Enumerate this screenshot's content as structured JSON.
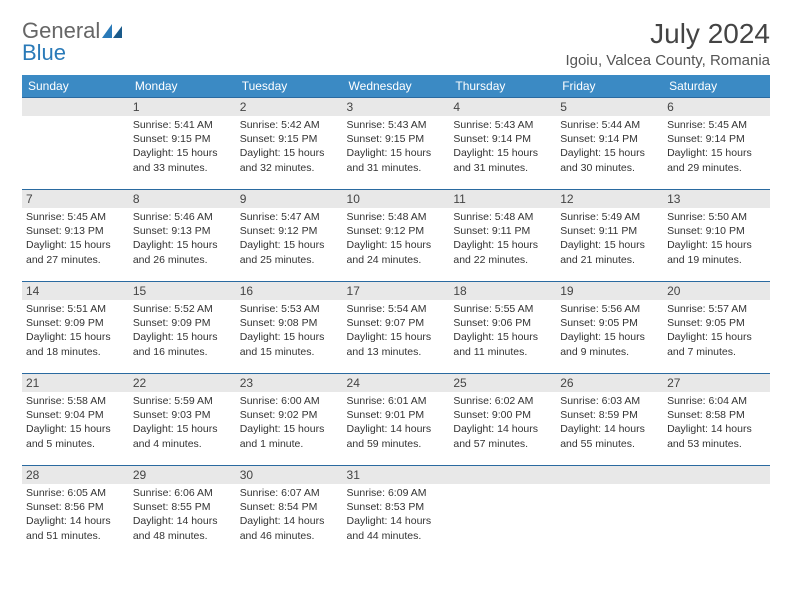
{
  "logo": {
    "text1": "General",
    "text2": "Blue"
  },
  "title": "July 2024",
  "location": "Igoiu, Valcea County, Romania",
  "colors": {
    "header_bg": "#3b8ac4",
    "header_text": "#ffffff",
    "daynum_bg": "#e8e8e8",
    "border": "#2a6aa0",
    "logo_gray": "#666666",
    "logo_blue": "#2a7ab8"
  },
  "weekdays": [
    "Sunday",
    "Monday",
    "Tuesday",
    "Wednesday",
    "Thursday",
    "Friday",
    "Saturday"
  ],
  "grid": {
    "start_offset": 1,
    "days": [
      {
        "n": 1,
        "sr": "5:41 AM",
        "ss": "9:15 PM",
        "dl": "15 hours and 33 minutes."
      },
      {
        "n": 2,
        "sr": "5:42 AM",
        "ss": "9:15 PM",
        "dl": "15 hours and 32 minutes."
      },
      {
        "n": 3,
        "sr": "5:43 AM",
        "ss": "9:15 PM",
        "dl": "15 hours and 31 minutes."
      },
      {
        "n": 4,
        "sr": "5:43 AM",
        "ss": "9:14 PM",
        "dl": "15 hours and 31 minutes."
      },
      {
        "n": 5,
        "sr": "5:44 AM",
        "ss": "9:14 PM",
        "dl": "15 hours and 30 minutes."
      },
      {
        "n": 6,
        "sr": "5:45 AM",
        "ss": "9:14 PM",
        "dl": "15 hours and 29 minutes."
      },
      {
        "n": 7,
        "sr": "5:45 AM",
        "ss": "9:13 PM",
        "dl": "15 hours and 27 minutes."
      },
      {
        "n": 8,
        "sr": "5:46 AM",
        "ss": "9:13 PM",
        "dl": "15 hours and 26 minutes."
      },
      {
        "n": 9,
        "sr": "5:47 AM",
        "ss": "9:12 PM",
        "dl": "15 hours and 25 minutes."
      },
      {
        "n": 10,
        "sr": "5:48 AM",
        "ss": "9:12 PM",
        "dl": "15 hours and 24 minutes."
      },
      {
        "n": 11,
        "sr": "5:48 AM",
        "ss": "9:11 PM",
        "dl": "15 hours and 22 minutes."
      },
      {
        "n": 12,
        "sr": "5:49 AM",
        "ss": "9:11 PM",
        "dl": "15 hours and 21 minutes."
      },
      {
        "n": 13,
        "sr": "5:50 AM",
        "ss": "9:10 PM",
        "dl": "15 hours and 19 minutes."
      },
      {
        "n": 14,
        "sr": "5:51 AM",
        "ss": "9:09 PM",
        "dl": "15 hours and 18 minutes."
      },
      {
        "n": 15,
        "sr": "5:52 AM",
        "ss": "9:09 PM",
        "dl": "15 hours and 16 minutes."
      },
      {
        "n": 16,
        "sr": "5:53 AM",
        "ss": "9:08 PM",
        "dl": "15 hours and 15 minutes."
      },
      {
        "n": 17,
        "sr": "5:54 AM",
        "ss": "9:07 PM",
        "dl": "15 hours and 13 minutes."
      },
      {
        "n": 18,
        "sr": "5:55 AM",
        "ss": "9:06 PM",
        "dl": "15 hours and 11 minutes."
      },
      {
        "n": 19,
        "sr": "5:56 AM",
        "ss": "9:05 PM",
        "dl": "15 hours and 9 minutes."
      },
      {
        "n": 20,
        "sr": "5:57 AM",
        "ss": "9:05 PM",
        "dl": "15 hours and 7 minutes."
      },
      {
        "n": 21,
        "sr": "5:58 AM",
        "ss": "9:04 PM",
        "dl": "15 hours and 5 minutes."
      },
      {
        "n": 22,
        "sr": "5:59 AM",
        "ss": "9:03 PM",
        "dl": "15 hours and 4 minutes."
      },
      {
        "n": 23,
        "sr": "6:00 AM",
        "ss": "9:02 PM",
        "dl": "15 hours and 1 minute."
      },
      {
        "n": 24,
        "sr": "6:01 AM",
        "ss": "9:01 PM",
        "dl": "14 hours and 59 minutes."
      },
      {
        "n": 25,
        "sr": "6:02 AM",
        "ss": "9:00 PM",
        "dl": "14 hours and 57 minutes."
      },
      {
        "n": 26,
        "sr": "6:03 AM",
        "ss": "8:59 PM",
        "dl": "14 hours and 55 minutes."
      },
      {
        "n": 27,
        "sr": "6:04 AM",
        "ss": "8:58 PM",
        "dl": "14 hours and 53 minutes."
      },
      {
        "n": 28,
        "sr": "6:05 AM",
        "ss": "8:56 PM",
        "dl": "14 hours and 51 minutes."
      },
      {
        "n": 29,
        "sr": "6:06 AM",
        "ss": "8:55 PM",
        "dl": "14 hours and 48 minutes."
      },
      {
        "n": 30,
        "sr": "6:07 AM",
        "ss": "8:54 PM",
        "dl": "14 hours and 46 minutes."
      },
      {
        "n": 31,
        "sr": "6:09 AM",
        "ss": "8:53 PM",
        "dl": "14 hours and 44 minutes."
      }
    ]
  },
  "labels": {
    "sunrise": "Sunrise:",
    "sunset": "Sunset:",
    "daylight": "Daylight:"
  }
}
